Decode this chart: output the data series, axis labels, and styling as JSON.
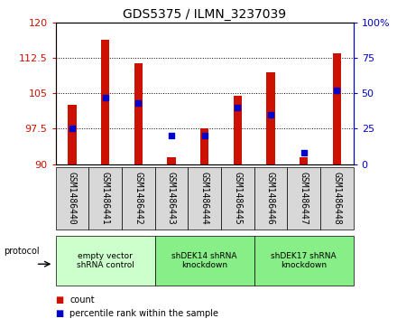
{
  "title": "GDS5375 / ILMN_3237039",
  "samples": [
    "GSM1486440",
    "GSM1486441",
    "GSM1486442",
    "GSM1486443",
    "GSM1486444",
    "GSM1486445",
    "GSM1486446",
    "GSM1486447",
    "GSM1486448"
  ],
  "count_values": [
    102.5,
    116.5,
    111.5,
    91.5,
    97.5,
    104.5,
    109.5,
    91.5,
    113.5
  ],
  "percentile_values": [
    25,
    47,
    43,
    20,
    20,
    40,
    35,
    8,
    52
  ],
  "ylim_left": [
    90,
    120
  ],
  "ylim_right": [
    0,
    100
  ],
  "yticks_left": [
    90,
    97.5,
    105,
    112.5,
    120
  ],
  "yticks_right": [
    0,
    25,
    50,
    75,
    100
  ],
  "ytick_labels_left": [
    "90",
    "97.5",
    "105",
    "112.5",
    "120"
  ],
  "ytick_labels_right": [
    "0",
    "25",
    "50",
    "75",
    "100%"
  ],
  "bar_color": "#cc1100",
  "dot_color": "#0000cc",
  "bar_bottom": 90,
  "groups": [
    {
      "label": "empty vector\nshRNA control",
      "start": 0,
      "end": 3,
      "color": "#ccffcc"
    },
    {
      "label": "shDEK14 shRNA\nknockdown",
      "start": 3,
      "end": 6,
      "color": "#88ee88"
    },
    {
      "label": "shDEK17 shRNA\nknockdown",
      "start": 6,
      "end": 9,
      "color": "#88ee88"
    }
  ],
  "protocol_label": "protocol",
  "legend_count": "count",
  "legend_percentile": "percentile rank within the sample",
  "bar_width": 0.25,
  "background_color": "#ffffff",
  "plot_bg_color": "#ffffff",
  "tick_label_bg": "#d8d8d8"
}
